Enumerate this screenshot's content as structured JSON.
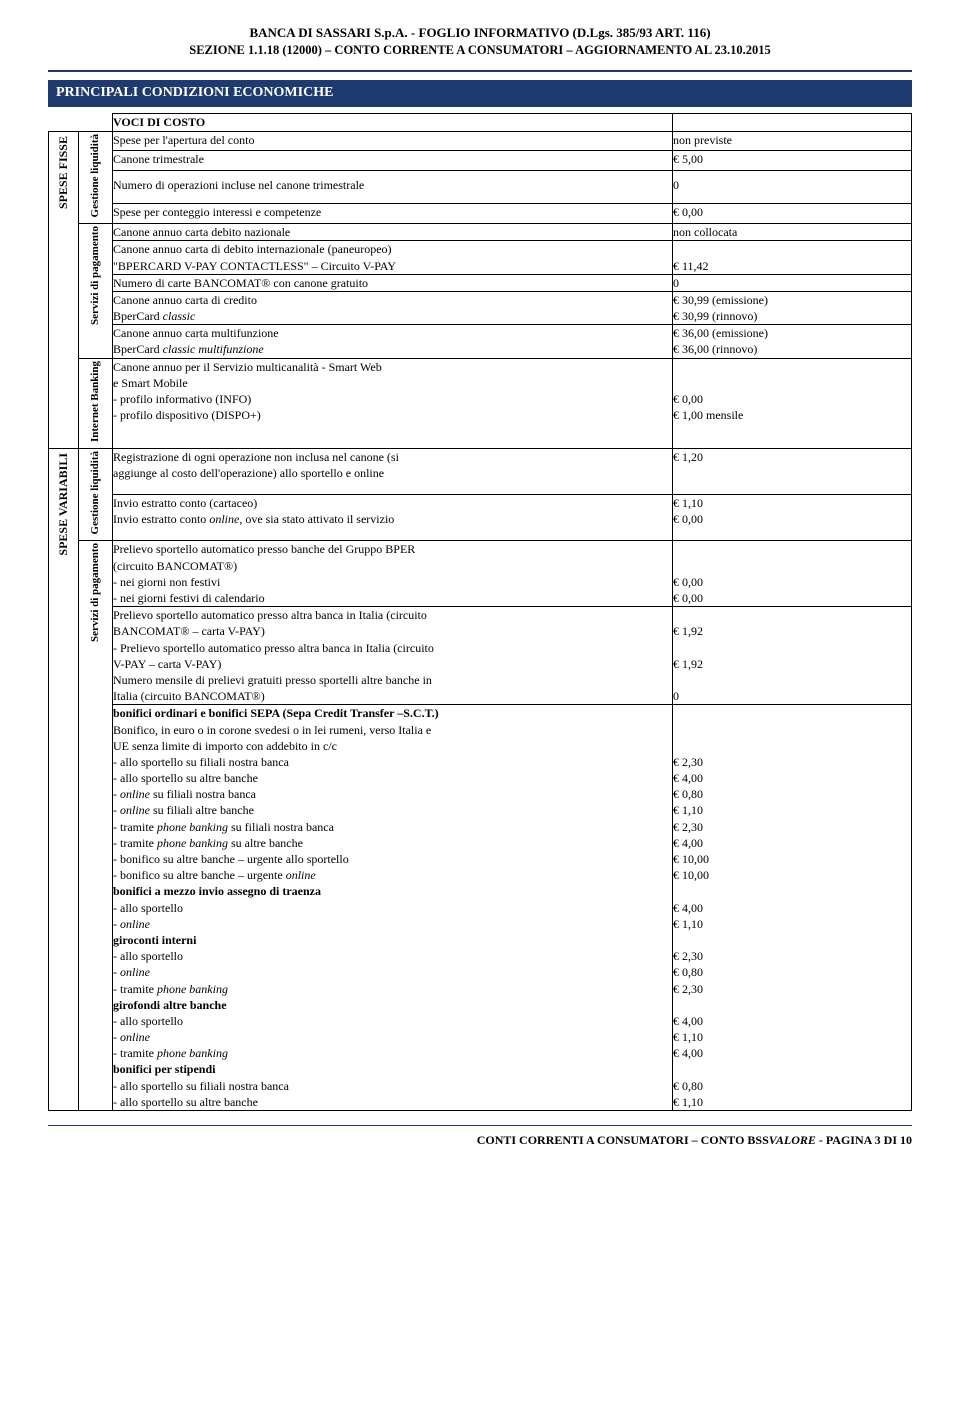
{
  "header": {
    "line1": "BANCA DI SASSARI S.p.A. - FOGLIO INFORMATIVO (D.Lgs. 385/93 ART. 116)",
    "line2": "SEZIONE 1.1.18 (12000) – CONTO CORRENTE A CONSUMATORI – AGGIORNAMENTO AL  23.10.2015"
  },
  "section_title": "PRINCIPALI CONDIZIONI ECONOMICHE",
  "voci_header": {
    "label": "VOCI DI COSTO",
    "val": ""
  },
  "spese_fisse": {
    "label": "SPESE FISSE",
    "gestione": {
      "label": "Gestione liquidità",
      "rows": [
        {
          "desc": "Spese per l'apertura del conto",
          "val": "non previste"
        },
        {
          "desc": "Canone trimestrale",
          "val": "€   5,00"
        },
        {
          "desc": "Numero di operazioni incluse nel canone trimestrale",
          "val": "0"
        },
        {
          "desc": "Spese per conteggio interessi e competenze",
          "val": "€   0,00"
        }
      ]
    },
    "servizi": {
      "label": "Servizi di pagamento",
      "rows": [
        {
          "desc": "Canone annuo carta debito nazionale",
          "val": "non collocata"
        },
        {
          "desc_l1": "Canone annuo carta di debito internazionale (paneuropeo)",
          "desc_l2": "\"BPERCARD V-PAY CONTACTLESS\" – Circuito V-PAY",
          "val": "€ 11,42"
        },
        {
          "desc": "Numero di carte BANCOMAT® con canone gratuito",
          "val": "0"
        },
        {
          "desc_l1": "Canone annuo carta di credito",
          "desc_l2_html": "BperCard <i>classic</i>",
          "val_l1": "€ 30,99 (emissione)",
          "val_l2": "€ 30,99 (rinnovo)"
        },
        {
          "desc_l1": "Canone annuo carta multifunzione",
          "desc_l2_html": "BperCard <i>classic multifunzione</i>",
          "val_l1": "€ 36,00 (emissione)",
          "val_l2": "€ 36,00 (rinnovo)"
        }
      ]
    },
    "internet": {
      "label": "Internet Banking",
      "desc_lines": [
        "Canone annuo per il Servizio multicanalità - Smart Web",
        " e Smart Mobile",
        "-   profilo informativo    (INFO)",
        "-   profilo dispositivo     (DISPO+)"
      ],
      "val_lines": [
        "",
        "",
        "€   0,00",
        "€   1,00 mensile"
      ]
    }
  },
  "spese_var": {
    "label": "SPESE VARIABILI",
    "gestione": {
      "label": "Gestione liquidità",
      "rows": [
        {
          "desc_l1": "Registrazione di ogni operazione non inclusa nel canone (si",
          "desc_l2": "aggiunge al costo dell'operazione) allo sportello e online",
          "val": "€   1,20"
        },
        {
          "desc_l1": "Invio estratto conto (cartaceo)",
          "desc_l2_html": "Invio estratto conto <i>online</i>, ove sia stato attivato il servizio",
          "val_l1": "€   1,10",
          "val_l2": "€   0,00"
        }
      ]
    },
    "servizi": {
      "label": "Servizi di pagamento",
      "block1": {
        "desc": [
          "Prelievo sportello automatico presso banche del Gruppo BPER",
          "(circuito BANCOMAT®)",
          " - nei giorni non festivi",
          " - nei giorni festivi di calendario"
        ],
        "val": [
          "",
          "",
          "€   0,00",
          "€   0,00"
        ]
      },
      "block2": {
        "desc": [
          "Prelievo sportello automatico presso altra banca in Italia (circuito",
          "BANCOMAT® – carta V-PAY)",
          "- Prelievo sportello automatico presso altra banca in Italia (circuito",
          "V-PAY – carta V-PAY)",
          "Numero mensile di prelievi gratuiti presso sportelli altre banche in",
          "Italia (circuito BANCOMAT®)"
        ],
        "val": [
          "",
          "€   1,92",
          "",
          "€   1,92",
          "",
          "0"
        ]
      },
      "block3": {
        "title": "bonifici ordinari e bonifici SEPA (Sepa Credit Transfer –S.C.T.)",
        "intro": [
          "Bonifico, in euro o in corone svedesi o in lei rumeni, verso Italia e",
          "UE senza limite di importo con addebito in c/c"
        ],
        "items": [
          {
            "d": "- allo sportello su filiali nostra banca",
            "v": "€   2,30"
          },
          {
            "d": "- allo sportello su altre banche",
            "v": "€   4,00"
          },
          {
            "d_html": "- <i>online</i> su filiali nostra banca",
            "v": "€   0,80"
          },
          {
            "d_html": "- <i>online</i> su filiali altre banche",
            "v": "€   1,10"
          },
          {
            "d_html": "- tramite <i>phone banking</i> su filiali nostra banca",
            "v": "€   2,30"
          },
          {
            "d_html": "- tramite <i>phone banking</i> su altre banche",
            "v": "€   4,00"
          },
          {
            "d": "- bonifico su altre banche – urgente allo sportello",
            "v": "€ 10,00"
          },
          {
            "d_html": "- bonifico su altre banche – urgente <i>online</i>",
            "v": "€ 10,00"
          }
        ],
        "sub1_title": "bonifici a mezzo invio assegno di traenza",
        "sub1_items": [
          {
            "d": "- allo sportello",
            "v": "€   4,00"
          },
          {
            "d_html": "- <i>online</i>",
            "v": "€   1,10"
          }
        ],
        "sub2_title": "giroconti interni",
        "sub2_items": [
          {
            "d": "- allo sportello",
            "v": "€   2,30"
          },
          {
            "d_html": "- <i>online</i>",
            "v": "€   0,80"
          },
          {
            "d_html": "- tramite <i>phone banking</i>",
            "v": "€   2,30"
          }
        ],
        "sub3_title": "girofondi altre banche",
        "sub3_items": [
          {
            "d": "- allo sportello",
            "v": "€   4,00"
          },
          {
            "d_html": "- <i>online</i>",
            "v": "€   1,10"
          },
          {
            "d_html": "- tramite <i>phone banking</i>",
            "v": "€   4,00"
          }
        ],
        "sub4_title": "bonifici per stipendi",
        "sub4_items": [
          {
            "d": "- allo sportello su filiali nostra banca",
            "v": "€   0,80"
          },
          {
            "d": "- allo sportello su altre banche",
            "v": "€   1,10"
          }
        ]
      }
    }
  },
  "footer": {
    "prefix": "CONTI CORRENTI A CONSUMATORI – CONTO BSS",
    "brand": "VALORE",
    "suffix": "  - PAGINA 3 DI 10"
  }
}
